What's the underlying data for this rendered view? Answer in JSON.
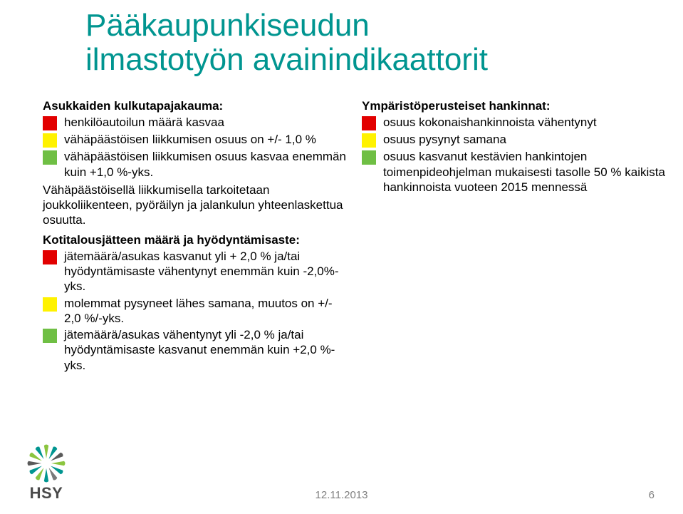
{
  "title_line1": "Pääkaupunkiseudun",
  "title_line2": "ilmastotyön avainindikaattorit",
  "title_color": "#009590",
  "swatch_colors": {
    "red": "#e20000",
    "yellow": "#fff200",
    "green": "#6fbf44"
  },
  "left": {
    "section1": {
      "heading": "Asukkaiden kulkutapajakauma:",
      "items": [
        {
          "color": "red",
          "text": "henkilöautoilun määrä kasvaa"
        },
        {
          "color": "yellow",
          "text": "vähäpäästöisen liikkumisen osuus on +/- 1,0 %"
        },
        {
          "color": "green",
          "text": "vähäpäästöisen liikkumisen osuus kasvaa enemmän kuin +1,0 %-yks."
        }
      ],
      "note": "Vähäpäästöisellä liikkumisella tarkoitetaan joukkoliikenteen, pyöräilyn ja jalankulun yhteenlaskettua osuutta."
    },
    "section2": {
      "heading": "Kotitalousjätteen määrä ja hyödyntämisaste:",
      "items": [
        {
          "color": "red",
          "text": "jätemäärä/asukas kasvanut yli + 2,0 % ja/tai hyödyntämisaste vähentynyt enemmän kuin -2,0%-yks."
        },
        {
          "color": "yellow",
          "text": "molemmat pysyneet lähes samana, muutos on +/- 2,0 %/-yks."
        },
        {
          "color": "green",
          "text": "jätemäärä/asukas vähentynyt yli -2,0 % ja/tai hyödyntämisaste kasvanut enemmän kuin +2,0 %-yks."
        }
      ]
    }
  },
  "right": {
    "section1": {
      "heading": "Ympäristöperusteiset hankinnat:",
      "items": [
        {
          "color": "red",
          "text": "osuus kokonaishankinnoista vähentynyt"
        },
        {
          "color": "yellow",
          "text": "osuus pysynyt samana"
        },
        {
          "color": "green",
          "text": "osuus kasvanut kestävien hankintojen toimenpideohjelman mukaisesti tasolle 50 % kaikista hankinnoista vuoteen 2015 mennessä"
        }
      ]
    }
  },
  "logo": {
    "text": "HSY",
    "palette": [
      "#8bc53f",
      "#009590",
      "#5a5a5a",
      "#8bc53f",
      "#009590",
      "#7a7a7a",
      "#009590",
      "#8bc53f",
      "#009590",
      "#5a5a5a",
      "#8bc53f",
      "#009590"
    ]
  },
  "footer": {
    "date": "12.11.2013",
    "page": "6",
    "color": "#808080"
  }
}
